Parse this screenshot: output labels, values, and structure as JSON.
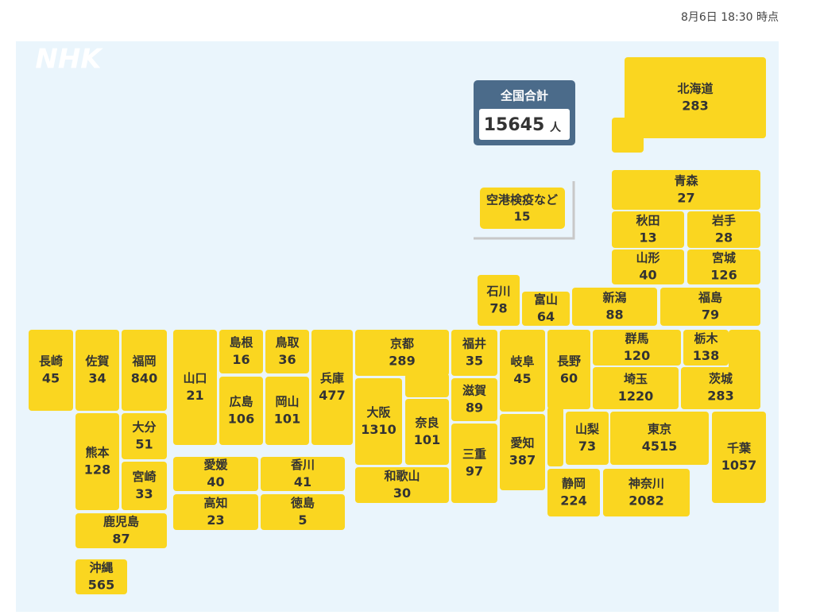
{
  "timestamp": "8月6日 18:30 時点",
  "logo": "NHK",
  "total": {
    "label": "全国合計",
    "value": 15645,
    "unit": "人"
  },
  "airport": {
    "name": "空港検疫など",
    "count": 15
  },
  "prefectures": [
    {
      "name": "北海道",
      "count": 283
    },
    {
      "name": "青森",
      "count": 27
    },
    {
      "name": "秋田",
      "count": 13
    },
    {
      "name": "岩手",
      "count": 28
    },
    {
      "name": "山形",
      "count": 40
    },
    {
      "name": "宮城",
      "count": 126
    },
    {
      "name": "石川",
      "count": 78
    },
    {
      "name": "富山",
      "count": 64
    },
    {
      "name": "新潟",
      "count": 88
    },
    {
      "name": "福島",
      "count": 79
    },
    {
      "name": "長野",
      "count": 60
    },
    {
      "name": "群馬",
      "count": 120
    },
    {
      "name": "栃木",
      "count": 138
    },
    {
      "name": "茨城",
      "count": 283
    },
    {
      "name": "埼玉",
      "count": 1220
    },
    {
      "name": "山梨",
      "count": 73
    },
    {
      "name": "東京",
      "count": 4515
    },
    {
      "name": "千葉",
      "count": 1057
    },
    {
      "name": "静岡",
      "count": 224
    },
    {
      "name": "神奈川",
      "count": 2082
    },
    {
      "name": "岐阜",
      "count": 45
    },
    {
      "name": "愛知",
      "count": 387
    },
    {
      "name": "福井",
      "count": 35
    },
    {
      "name": "滋賀",
      "count": 89
    },
    {
      "name": "三重",
      "count": 97
    },
    {
      "name": "京都",
      "count": 289
    },
    {
      "name": "大阪",
      "count": 1310
    },
    {
      "name": "奈良",
      "count": 101
    },
    {
      "name": "和歌山",
      "count": 30
    },
    {
      "name": "兵庫",
      "count": 477
    },
    {
      "name": "鳥取",
      "count": 36
    },
    {
      "name": "岡山",
      "count": 101
    },
    {
      "name": "島根",
      "count": 16
    },
    {
      "name": "広島",
      "count": 106
    },
    {
      "name": "山口",
      "count": 21
    },
    {
      "name": "愛媛",
      "count": 40
    },
    {
      "name": "香川",
      "count": 41
    },
    {
      "name": "高知",
      "count": 23
    },
    {
      "name": "徳島",
      "count": 5
    },
    {
      "name": "長崎",
      "count": 45
    },
    {
      "name": "佐賀",
      "count": 34
    },
    {
      "name": "福岡",
      "count": 840
    },
    {
      "name": "熊本",
      "count": 128
    },
    {
      "name": "大分",
      "count": 51
    },
    {
      "name": "宮崎",
      "count": 33
    },
    {
      "name": "鹿児島",
      "count": 87
    },
    {
      "name": "沖縄",
      "count": 565
    }
  ]
}
